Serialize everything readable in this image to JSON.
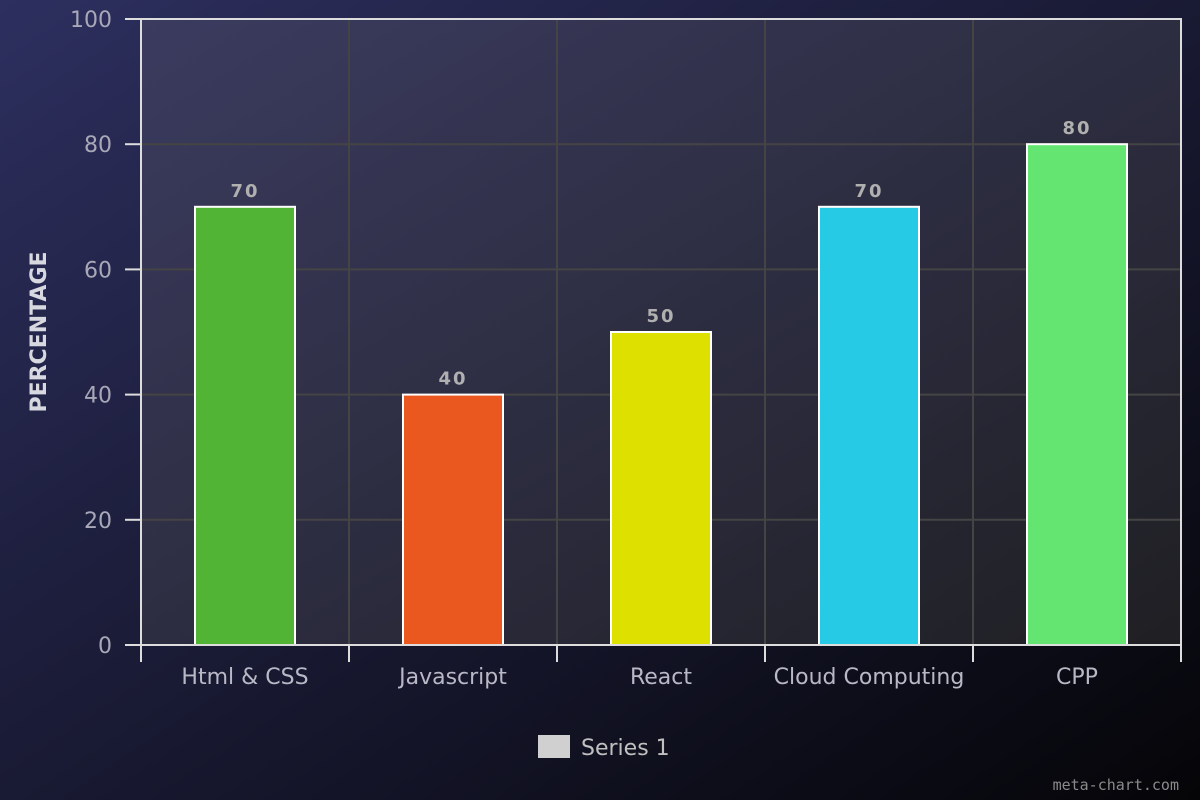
{
  "chart_data": {
    "type": "bar",
    "categories": [
      "Html & CSS",
      "Javascript",
      "React",
      "Cloud Computing",
      "CPP"
    ],
    "values": [
      70,
      40,
      50,
      70,
      80
    ],
    "bar_colors": [
      "#52b435",
      "#ea581f",
      "#dee000",
      "#26cae4",
      "#64e571"
    ],
    "ylabel": "PERCENTAGE",
    "xlabel": "",
    "ylim": [
      0,
      100
    ],
    "yticks": [
      0,
      20,
      40,
      60,
      80,
      100
    ],
    "grid": true,
    "legend": {
      "position": "bottom-center",
      "entries": [
        {
          "name": "Series 1",
          "color": "#d0d0d0"
        }
      ]
    },
    "show_data_labels": true
  },
  "watermark": "meta-chart.com",
  "colors": {
    "background_top_left": "#2d2f5f",
    "background_bottom_right": "#050508",
    "plot_top": "#3a3a5e",
    "plot_bottom": "#1f1f24",
    "grid": "#444444",
    "axis": "#dddddd",
    "tick_label": "#a8a8b8",
    "category_label": "#b8b8c6",
    "axis_title": "#d8d8e0",
    "data_label": "#b0b0b0",
    "legend_text": "#c0c0c0",
    "watermark": "#8a8a8a"
  }
}
